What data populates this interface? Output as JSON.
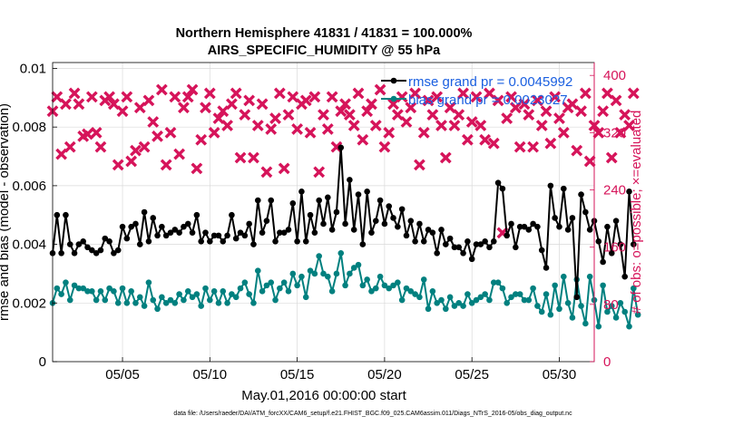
{
  "chart_data": {
    "type": "line",
    "title": [
      "Northern Hemisphere 41831 / 41831 = 100.000%",
      "AIRS_SPECIFIC_HUMIDITY @ 55 hPa"
    ],
    "xlabel": "May.01,2016 00:00:00 start",
    "ylabel_left": "rmse and bias (model - observation)",
    "ylabel_right": "# of obs: o=possible; ×=evaluated",
    "xlim": [
      1,
      32
    ],
    "x_ticks": [
      5,
      10,
      15,
      20,
      25,
      30
    ],
    "x_tick_labels": [
      "05/05",
      "05/10",
      "05/15",
      "05/20",
      "05/25",
      "05/30"
    ],
    "ylim_left": [
      0,
      0.0102
    ],
    "y_ticks_left": [
      0,
      0.002,
      0.004,
      0.006,
      0.008,
      0.01
    ],
    "y_tick_labels_left": [
      "0",
      "0.002",
      "0.004",
      "0.006",
      "0.008",
      "0.01"
    ],
    "ylim_right": [
      0,
      418
    ],
    "y_ticks_right": [
      0,
      80,
      160,
      240,
      320,
      400
    ],
    "y_tick_labels_right": [
      "0",
      "80",
      "160",
      "240",
      "320",
      "400"
    ],
    "time_step_days": 0.25,
    "time_start_day": 1,
    "footnote": "data file: /Users/raeder/DAI/ATM_forcXX/CAM6_setup/f.e21.FHIST_BGC.f09_025.CAM6assim.011/Diags_NTrS_2016-05/obs_diag_output.nc",
    "colors": {
      "rmse": "#000000",
      "bias": "#00807f",
      "obs": "#d6145a"
    },
    "series": [
      {
        "name": "rmse",
        "legend": "rmse grand pr = 0.0045992",
        "values": [
          0.0037,
          0.005,
          0.0037,
          0.005,
          0.004,
          0.0037,
          0.004,
          0.0041,
          0.0039,
          0.0038,
          0.0037,
          0.0038,
          0.0042,
          0.0041,
          0.0037,
          0.0038,
          0.0046,
          0.0042,
          0.0046,
          0.0047,
          0.004,
          0.0051,
          0.0041,
          0.0049,
          0.0043,
          0.0046,
          0.0043,
          0.0044,
          0.0045,
          0.0044,
          0.0046,
          0.0047,
          0.0044,
          0.005,
          0.0041,
          0.0044,
          0.0041,
          0.0043,
          0.0043,
          0.0041,
          0.0043,
          0.005,
          0.0042,
          0.0044,
          0.0043,
          0.0047,
          0.004,
          0.0055,
          0.0044,
          0.0048,
          0.0055,
          0.0041,
          0.0044,
          0.0044,
          0.0045,
          0.0054,
          0.0041,
          0.0058,
          0.0041,
          0.005,
          0.0044,
          0.0055,
          0.0047,
          0.0056,
          0.0045,
          0.0051,
          0.0073,
          0.0047,
          0.0062,
          0.0045,
          0.0057,
          0.004,
          0.0058,
          0.0044,
          0.0048,
          0.0055,
          0.0047,
          0.0053,
          0.0049,
          0.0046,
          0.0052,
          0.0043,
          0.0048,
          0.0041,
          0.0047,
          0.0041,
          0.0045,
          0.0044,
          0.0037,
          0.0045,
          0.004,
          0.0042,
          0.0039,
          0.0039,
          0.0037,
          0.0041,
          0.0035,
          0.004,
          0.004,
          0.0041,
          0.0039,
          0.0041,
          0.0061,
          0.0059,
          0.0043,
          0.0047,
          0.0039,
          0.0046,
          0.0046,
          0.0045,
          0.0047,
          0.0046,
          0.0038,
          0.0032,
          0.006,
          0.0049,
          0.0046,
          0.0059,
          0.0045,
          0.0049,
          0.0022,
          0.0057,
          0.0051,
          0.0045,
          0.0048,
          0.0041,
          0.0034,
          0.0046,
          0.0037,
          0.0048,
          0.004,
          0.0029,
          0.0058,
          0.004
        ],
        "markers": "filled-circle-line"
      },
      {
        "name": "bias",
        "legend": "bias grand pr = 0.0023027",
        "values": [
          0.002,
          0.0025,
          0.0023,
          0.0027,
          0.0021,
          0.0026,
          0.0025,
          0.0025,
          0.0024,
          0.0024,
          0.0021,
          0.0024,
          0.0021,
          0.0025,
          0.0024,
          0.002,
          0.0025,
          0.002,
          0.0024,
          0.002,
          0.0022,
          0.0019,
          0.0027,
          0.0021,
          0.0018,
          0.0022,
          0.002,
          0.0021,
          0.002,
          0.0023,
          0.0021,
          0.0024,
          0.0022,
          0.0023,
          0.0019,
          0.0025,
          0.0021,
          0.0024,
          0.002,
          0.0024,
          0.002,
          0.0023,
          0.0022,
          0.0025,
          0.0027,
          0.0023,
          0.002,
          0.0031,
          0.0024,
          0.0026,
          0.0027,
          0.0021,
          0.0025,
          0.0027,
          0.0024,
          0.003,
          0.0026,
          0.0029,
          0.0022,
          0.0031,
          0.003,
          0.0036,
          0.003,
          0.0029,
          0.0024,
          0.003,
          0.0037,
          0.0026,
          0.003,
          0.0032,
          0.0033,
          0.0026,
          0.0028,
          0.0024,
          0.0025,
          0.0029,
          0.0026,
          0.0025,
          0.0026,
          0.0027,
          0.0021,
          0.0025,
          0.0024,
          0.0023,
          0.0022,
          0.0028,
          0.0018,
          0.0024,
          0.002,
          0.0021,
          0.0018,
          0.0022,
          0.0019,
          0.002,
          0.0019,
          0.0023,
          0.002,
          0.0021,
          0.0022,
          0.0023,
          0.0021,
          0.0027,
          0.0027,
          0.0025,
          0.002,
          0.0022,
          0.0023,
          0.0023,
          0.0021,
          0.0021,
          0.0025,
          0.0019,
          0.0017,
          0.0023,
          0.0016,
          0.0026,
          0.0018,
          0.0029,
          0.002,
          0.0015,
          0.0028,
          0.0019,
          0.0013,
          0.0029,
          0.0021,
          0.0012,
          0.0026,
          0.0017,
          0.0019,
          0.0015,
          0.002,
          0.0017,
          0.0012,
          0.0025,
          0.0016
        ],
        "markers": "filled-circle-line"
      },
      {
        "name": "obs",
        "legend": "",
        "values": [
          350,
          370,
          290,
          360,
          300,
          375,
          360,
          315,
          318,
          370,
          320,
          300,
          365,
          370,
          360,
          275,
          350,
          370,
          280,
          295,
          355,
          300,
          365,
          335,
          315,
          380,
          275,
          320,
          370,
          290,
          355,
          370,
          380,
          270,
          310,
          355,
          375,
          320,
          340,
          350,
          330,
          360,
          375,
          285,
          345,
          365,
          285,
          330,
          360,
          265,
          325,
          340,
          375,
          270,
          345,
          370,
          325,
          360,
          365,
          320,
          370,
          265,
          345,
          325,
          370,
          300,
          350,
          360,
          345,
          330,
          375,
          310,
          350,
          360,
          330,
          380,
          300,
          320,
          360,
          345,
          370,
          335,
          355,
          375,
          275,
          320,
          365,
          345,
          370,
          330,
          285,
          355,
          330,
          345,
          375,
          310,
          335,
          370,
          330,
          310,
          375,
          305,
          365,
          180,
          340,
          370,
          355,
          300,
          360,
          345,
          300,
          365,
          330,
          350,
          305,
          370,
          340,
          320,
          355,
          360,
          295,
          350,
          375,
          280,
          330,
          320,
          350,
          375,
          285,
          365,
          320,
          345,
          330,
          375
        ],
        "markers": "x"
      }
    ]
  }
}
